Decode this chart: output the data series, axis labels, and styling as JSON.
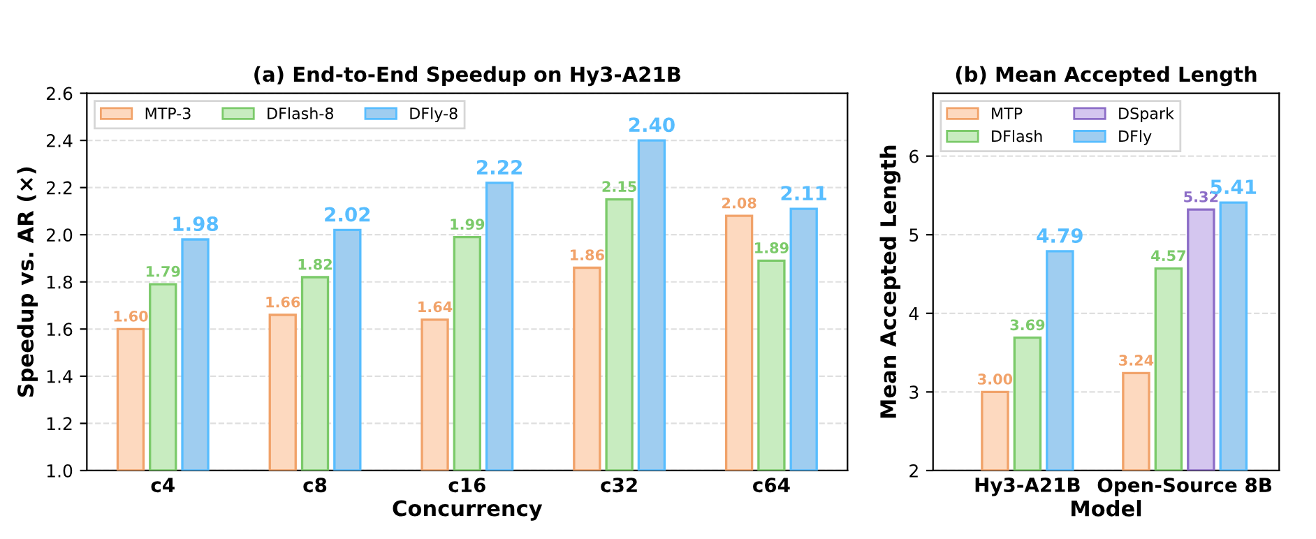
{
  "chart_data": [
    {
      "type": "bar",
      "title": "(a) End-to-End Speedup on Hy3-A21B",
      "xlabel": "Concurrency",
      "ylabel": "Speedup vs. AR (×)",
      "categories": [
        "c4",
        "c8",
        "c16",
        "c32",
        "c64"
      ],
      "series": [
        {
          "name": "MTP-3",
          "color": "#fdd9bf",
          "values": [
            1.6,
            1.66,
            1.64,
            1.86,
            2.08
          ],
          "value_labels": [
            "1.60",
            "1.66",
            "1.64",
            "1.86",
            "2.08"
          ]
        },
        {
          "name": "DFlash-8",
          "color": "#c8ecc0",
          "values": [
            1.79,
            1.82,
            1.99,
            2.15,
            1.89
          ],
          "value_labels": [
            "1.79",
            "1.82",
            "1.99",
            "2.15",
            "1.89"
          ]
        },
        {
          "name": "DFly-8",
          "color": "#9fcdf0",
          "values": [
            1.98,
            2.02,
            2.22,
            2.4,
            2.11
          ],
          "value_labels": [
            "1.98",
            "2.02",
            "2.22",
            "2.40",
            "2.11"
          ]
        }
      ],
      "ylim": [
        1.0,
        2.6
      ],
      "yticks": [
        {
          "value": 1,
          "label": "1.0"
        },
        1.2,
        1.4,
        1.6,
        1.8,
        {
          "value": 2,
          "label": "2.0"
        },
        2.2,
        2.4,
        2.6
      ],
      "grid": "y",
      "legend": "top left"
    },
    {
      "type": "bar",
      "title": "(b) Mean Accepted Length",
      "xlabel": "Model",
      "ylabel": "Mean Accepted Length",
      "categories": [
        "Hy3-A21B",
        "Open-Source 8B"
      ],
      "series": [
        {
          "name": "MTP",
          "color": "#fdd9bf",
          "values": [
            3.0,
            3.24
          ],
          "value_labels": [
            "3.00",
            "3.24"
          ]
        },
        {
          "name": "DFlash",
          "color": "#c8ecc0",
          "values": [
            3.69,
            4.57
          ],
          "value_labels": [
            "3.69",
            "4.57"
          ]
        },
        {
          "name": "DSpark",
          "color": "#d4c6ef",
          "values": [
            null,
            5.32
          ],
          "value_labels": [
            null,
            "5.32"
          ]
        },
        {
          "name": "DFly",
          "color": "#9fcdf0",
          "values": [
            4.79,
            5.41
          ],
          "value_labels": [
            "4.79",
            "5.41"
          ]
        }
      ],
      "ylim": [
        2,
        6.8
      ],
      "yticks": [
        2,
        3,
        4,
        5,
        6
      ],
      "grid": "y",
      "legend": "top left"
    }
  ]
}
